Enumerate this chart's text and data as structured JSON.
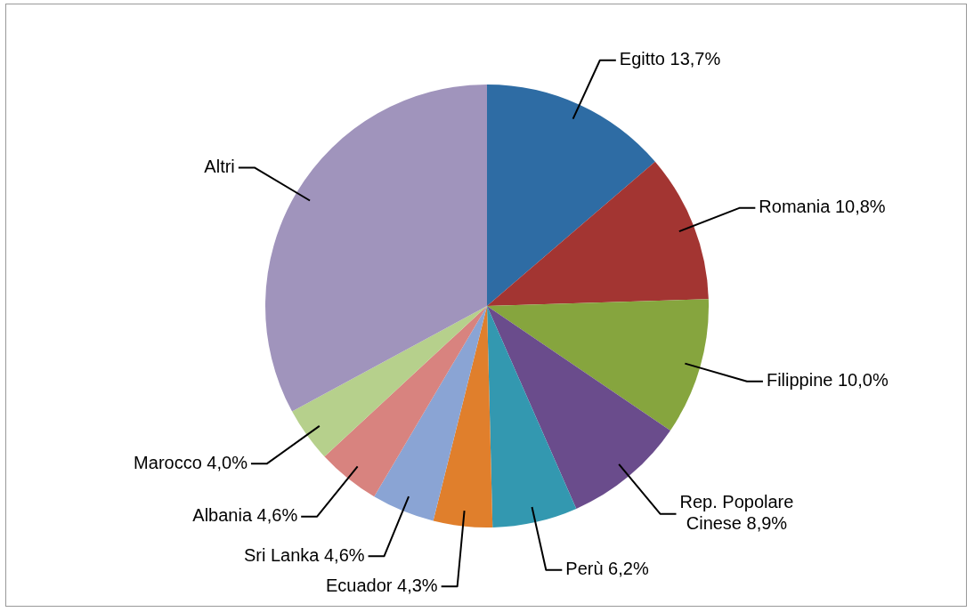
{
  "chart_data": {
    "type": "pie",
    "categories": [
      "Egitto",
      "Romania",
      "Filippine",
      "Rep. Popolare Cinese",
      "Perù",
      "Ecuador",
      "Sri Lanka",
      "Albania",
      "Marocco",
      "Altri"
    ],
    "values": [
      13.7,
      10.8,
      10.0,
      8.9,
      6.2,
      4.3,
      4.6,
      4.6,
      4.0,
      32.9
    ],
    "value_labels": [
      "13,7%",
      "10,8%",
      "10,0%",
      "8,9%",
      "6,2%",
      "4,3%",
      "4,6%",
      "4,6%",
      "4,0%",
      null
    ],
    "colors": [
      "#2e6ca4",
      "#a33532",
      "#86a53e",
      "#6a4c8c",
      "#3398b0",
      "#e07f2c",
      "#8aa4d4",
      "#d8837f",
      "#b6d08c",
      "#a094bc"
    ],
    "legend": false
  }
}
